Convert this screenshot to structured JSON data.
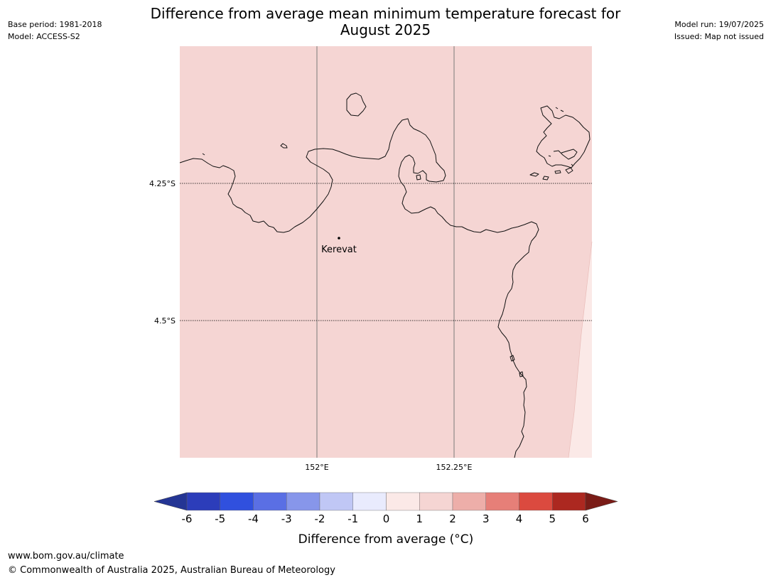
{
  "header": {
    "title_line1": "Difference from average mean minimum temperature forecast for",
    "title_line2": "August 2025",
    "base_period": "Base period: 1981-2018",
    "model": "Model: ACCESS-S2",
    "model_run": "Model run: 19/07/2025",
    "issued": "Issued: Map not issued"
  },
  "map": {
    "place_label": "Kerevat",
    "lat_labels": [
      "4.25°S",
      "4.5°S"
    ],
    "lon_labels": [
      "152°E",
      "152.25°E"
    ],
    "fill_colors": {
      "anomaly_1_to_2": "#f5d5d3",
      "anomaly_0_to_1": "#fbe9e7"
    }
  },
  "legend": {
    "label": "Difference from average (°C)",
    "ticks": [
      "-6",
      "-5",
      "-4",
      "-3",
      "-2",
      "-1",
      "0",
      "1",
      "2",
      "3",
      "4",
      "5",
      "6"
    ],
    "colors": [
      "#243594",
      "#2c3dba",
      "#3050de",
      "#5a6fe4",
      "#8796ea",
      "#c0c7f5",
      "#e9ebfd",
      "#fbe9e7",
      "#f5d5d3",
      "#edaea9",
      "#e67f78",
      "#db4a3f",
      "#ac2820",
      "#7a1c17"
    ]
  },
  "footer": {
    "url": "www.bom.gov.au/climate",
    "copyright": "© Commonwealth of Australia 2025, Australian Bureau of Meteorology"
  }
}
